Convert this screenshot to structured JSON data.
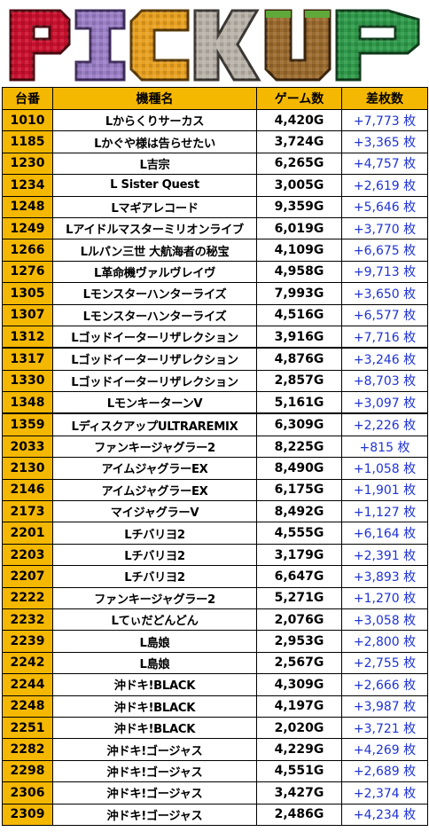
{
  "banner": {
    "title": "PICKUP"
  },
  "table": {
    "headers": {
      "no": "台番",
      "name": "機種名",
      "games": "ゲーム数",
      "diff": "差枚数"
    },
    "rows": [
      {
        "no": "1010",
        "name": "Lからくりサーカス",
        "games": "4,420G",
        "diff": "+7,773 枚"
      },
      {
        "no": "1185",
        "name": "Lかぐや様は告らせたい",
        "games": "3,724G",
        "diff": "+3,365 枚"
      },
      {
        "no": "1230",
        "name": "L吉宗",
        "games": "6,265G",
        "diff": "+4,757 枚"
      },
      {
        "no": "1234",
        "name": "L Sister Quest",
        "games": "3,005G",
        "diff": "+2,619 枚"
      },
      {
        "no": "1248",
        "name": "Lマギアレコード",
        "games": "9,359G",
        "diff": "+5,646 枚"
      },
      {
        "no": "1249",
        "name": "Lアイドルマスターミリオンライブ",
        "games": "6,019G",
        "diff": "+3,770 枚"
      },
      {
        "no": "1266",
        "name": "Lルパン三世 大航海者の秘宝",
        "games": "4,109G",
        "diff": "+6,675 枚"
      },
      {
        "no": "1276",
        "name": "L革命機ヴァルヴレイヴ",
        "games": "4,958G",
        "diff": "+9,713 枚"
      },
      {
        "no": "1305",
        "name": "Lモンスターハンターライズ",
        "games": "7,993G",
        "diff": "+3,650 枚"
      },
      {
        "no": "1307",
        "name": "Lモンスターハンターライズ",
        "games": "4,516G",
        "diff": "+6,577 枚"
      },
      {
        "no": "1312",
        "name": "Lゴッドイーターリザレクション",
        "games": "3,916G",
        "diff": "+7,716 枚"
      },
      {
        "no": "1317",
        "name": "Lゴッドイーターリザレクション",
        "games": "4,876G",
        "diff": "+3,246 枚"
      },
      {
        "no": "1330",
        "name": "Lゴッドイーターリザレクション",
        "games": "2,857G",
        "diff": "+8,703 枚"
      },
      {
        "no": "1348",
        "name": "LモンキーターンV",
        "games": "5,161G",
        "diff": "+3,097 枚"
      },
      {
        "no": "1359",
        "name": "LディスクアップULTRAREMIX",
        "games": "6,309G",
        "diff": "+2,226 枚"
      },
      {
        "no": "2033",
        "name": "ファンキージャグラー2",
        "games": "8,225G",
        "diff": "+815 枚"
      },
      {
        "no": "2130",
        "name": "アイムジャグラーEX",
        "games": "8,490G",
        "diff": "+1,058 枚"
      },
      {
        "no": "2146",
        "name": "アイムジャグラーEX",
        "games": "6,175G",
        "diff": "+1,901 枚"
      },
      {
        "no": "2173",
        "name": "マイジャグラーV",
        "games": "8,492G",
        "diff": "+1,127 枚"
      },
      {
        "no": "2201",
        "name": "Lチバリヨ2",
        "games": "4,555G",
        "diff": "+6,164 枚"
      },
      {
        "no": "2203",
        "name": "Lチバリヨ2",
        "games": "3,179G",
        "diff": "+2,391 枚"
      },
      {
        "no": "2207",
        "name": "Lチバリヨ2",
        "games": "6,647G",
        "diff": "+3,893 枚"
      },
      {
        "no": "2222",
        "name": "ファンキージャグラー2",
        "games": "5,271G",
        "diff": "+1,270 枚"
      },
      {
        "no": "2232",
        "name": "Lてぃだどんどん",
        "games": "2,076G",
        "diff": "+3,058 枚"
      },
      {
        "no": "2239",
        "name": "L島娘",
        "games": "2,953G",
        "diff": "+2,800 枚"
      },
      {
        "no": "2242",
        "name": "L島娘",
        "games": "2,567G",
        "diff": "+2,755 枚"
      },
      {
        "no": "2244",
        "name": "沖ドキ!BLACK",
        "games": "4,309G",
        "diff": "+2,666 枚"
      },
      {
        "no": "2248",
        "name": "沖ドキ!BLACK",
        "games": "4,197G",
        "diff": "+3,987 枚"
      },
      {
        "no": "2251",
        "name": "沖ドキ!BLACK",
        "games": "2,020G",
        "diff": "+3,721 枚"
      },
      {
        "no": "2282",
        "name": "沖ドキ!ゴージャス",
        "games": "4,229G",
        "diff": "+4,269 枚"
      },
      {
        "no": "2298",
        "name": "沖ドキ!ゴージャス",
        "games": "4,551G",
        "diff": "+2,689 枚"
      },
      {
        "no": "2306",
        "name": "沖ドキ!ゴージャス",
        "games": "3,427G",
        "diff": "+2,374 枚"
      },
      {
        "no": "2309",
        "name": "沖ドキ!ゴージャス",
        "games": "2,486G",
        "diff": "+4,234 枚"
      }
    ]
  },
  "colors": {
    "header_bg": "#f5b800",
    "diff_text": "#1f33d6",
    "letter_p": "#c8102e",
    "letter_i": "#9b7fc6",
    "letter_c": "#e8a020",
    "letter_k": "#b9b3aa",
    "letter_u": "#9a6a2e",
    "letter_p2": "#2f9a4a"
  }
}
